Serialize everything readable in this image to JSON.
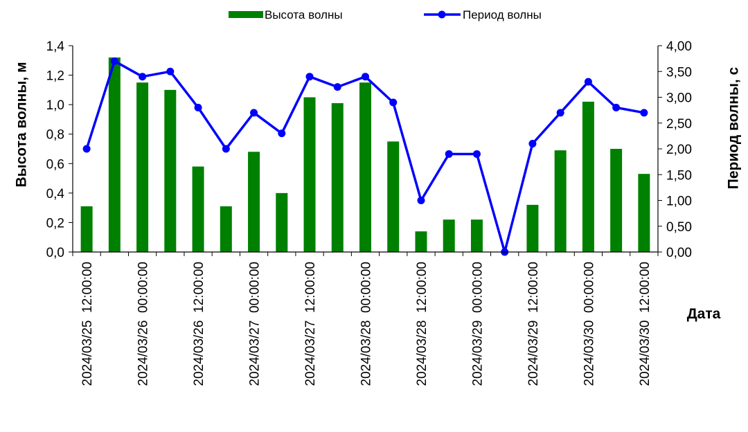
{
  "chart_data": {
    "type": "bar",
    "xlabel": "Дата",
    "ylabel_left": "Высота волны, м",
    "ylabel_right": "Период волны, с",
    "ylim_left": [
      0,
      1.4
    ],
    "ylim_right": [
      0,
      4
    ],
    "yticks_left": [
      "0,0",
      "0,2",
      "0,4",
      "0,6",
      "0,8",
      "1,0",
      "1,2",
      "1,4"
    ],
    "yticks_right": [
      "0,00",
      "0,50",
      "1,00",
      "1,50",
      "2,00",
      "2,50",
      "3,00",
      "3,50",
      "4,00"
    ],
    "grid": false,
    "legend_position": "top-center",
    "x_tick_labels": [
      "2024/03/25  12:00:00",
      "2024/03/26  00:00:00",
      "2024/03/26  12:00:00",
      "2024/03/27  00:00:00",
      "2024/03/27  12:00:00",
      "2024/03/28  00:00:00",
      "2024/03/28  12:00:00",
      "2024/03/29  00:00:00",
      "2024/03/29  12:00:00",
      "2024/03/30  00:00:00",
      "2024/03/30  12:00:00"
    ],
    "x": [
      "2024/03/25 12:00",
      "2024/03/25 18:00",
      "2024/03/26 00:00",
      "2024/03/26 06:00",
      "2024/03/26 12:00",
      "2024/03/26 18:00",
      "2024/03/27 00:00",
      "2024/03/27 06:00",
      "2024/03/27 12:00",
      "2024/03/27 18:00",
      "2024/03/28 00:00",
      "2024/03/28 06:00",
      "2024/03/28 12:00",
      "2024/03/28 18:00",
      "2024/03/29 00:00",
      "2024/03/29 06:00",
      "2024/03/29 12:00",
      "2024/03/29 18:00",
      "2024/03/30 00:00",
      "2024/03/30 06:00",
      "2024/03/30 12:00"
    ],
    "series": [
      {
        "name": "Высота волны",
        "type": "bar",
        "axis": "left",
        "color": "#008000",
        "values": [
          0.31,
          1.32,
          1.15,
          1.1,
          0.58,
          0.31,
          0.68,
          0.4,
          1.05,
          1.01,
          1.15,
          0.75,
          0.14,
          0.22,
          0.22,
          0.0,
          0.32,
          0.69,
          1.02,
          0.7,
          0.53
        ]
      },
      {
        "name": "Период волны",
        "type": "line",
        "axis": "right",
        "color": "#0000ff",
        "values": [
          2.0,
          3.7,
          3.4,
          3.5,
          2.8,
          2.0,
          2.7,
          2.3,
          3.4,
          3.2,
          3.4,
          2.9,
          1.0,
          1.9,
          1.9,
          0.0,
          2.1,
          2.7,
          3.3,
          2.8,
          2.7
        ]
      }
    ]
  }
}
